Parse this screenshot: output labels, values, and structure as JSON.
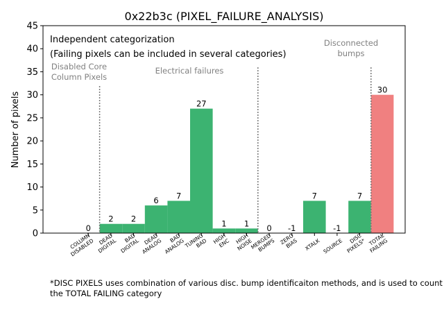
{
  "chart_data": {
    "type": "bar",
    "title": "0x22b3c (PIXEL_FAILURE_ANALYSIS)",
    "ylabel": "Number of pixels",
    "xlabel": "",
    "ylim": [
      0,
      45
    ],
    "yticks": [
      0,
      5,
      10,
      15,
      20,
      25,
      30,
      35,
      40,
      45
    ],
    "categories": [
      [
        "COLUMN",
        "DISABLED"
      ],
      [
        "DEAD",
        "DIGITAL"
      ],
      [
        "BAD",
        "DIGITAL"
      ],
      [
        "DEAD",
        "ANALOG"
      ],
      [
        "BAD",
        "ANALOG"
      ],
      [
        "TUNING",
        "BAD"
      ],
      [
        "HIGH",
        "ENC"
      ],
      [
        "HIGH",
        "NOISE"
      ],
      [
        "MERGED",
        "BUMPS"
      ],
      [
        "ZERO",
        "BIAS"
      ],
      [
        "XTALK"
      ],
      [
        "SOURCE"
      ],
      [
        "DISC",
        "PIXELS*"
      ],
      [
        "TOTAL",
        "FAILING"
      ]
    ],
    "values": [
      0,
      2,
      2,
      6,
      7,
      27,
      1,
      1,
      0,
      -1,
      7,
      -1,
      7,
      30
    ],
    "data_labels": [
      "0",
      "2",
      "2",
      "6",
      "7",
      "27",
      "1",
      "1",
      "0",
      "-1",
      "7",
      "-1",
      "7",
      "30"
    ],
    "bar_colors": [
      "#3cb371",
      "#3cb371",
      "#3cb371",
      "#3cb371",
      "#3cb371",
      "#3cb371",
      "#3cb371",
      "#3cb371",
      "#3cb371",
      "#3cb371",
      "#3cb371",
      "#3cb371",
      "#3cb371",
      "#f08080"
    ],
    "legend_text": [
      "Independent categorization",
      "(Failing pixels can be included in several categories)"
    ],
    "group_labels": [
      {
        "lines": [
          "Disabled Core",
          "Column Pixels"
        ],
        "name": "group-label-disabled-core"
      },
      {
        "lines": [
          "Electrical failures"
        ],
        "name": "group-label-electrical"
      },
      {
        "lines": [
          "Disconnected",
          "bumps"
        ],
        "name": "group-label-disconnected"
      }
    ],
    "group_label_color": "#808080",
    "separators_after_category_index": [
      0,
      7,
      12
    ]
  },
  "footnote": "*DISC PIXELS uses combination of various disc. bump identificaiton methods, and is used to count the TOTAL FAILING category"
}
